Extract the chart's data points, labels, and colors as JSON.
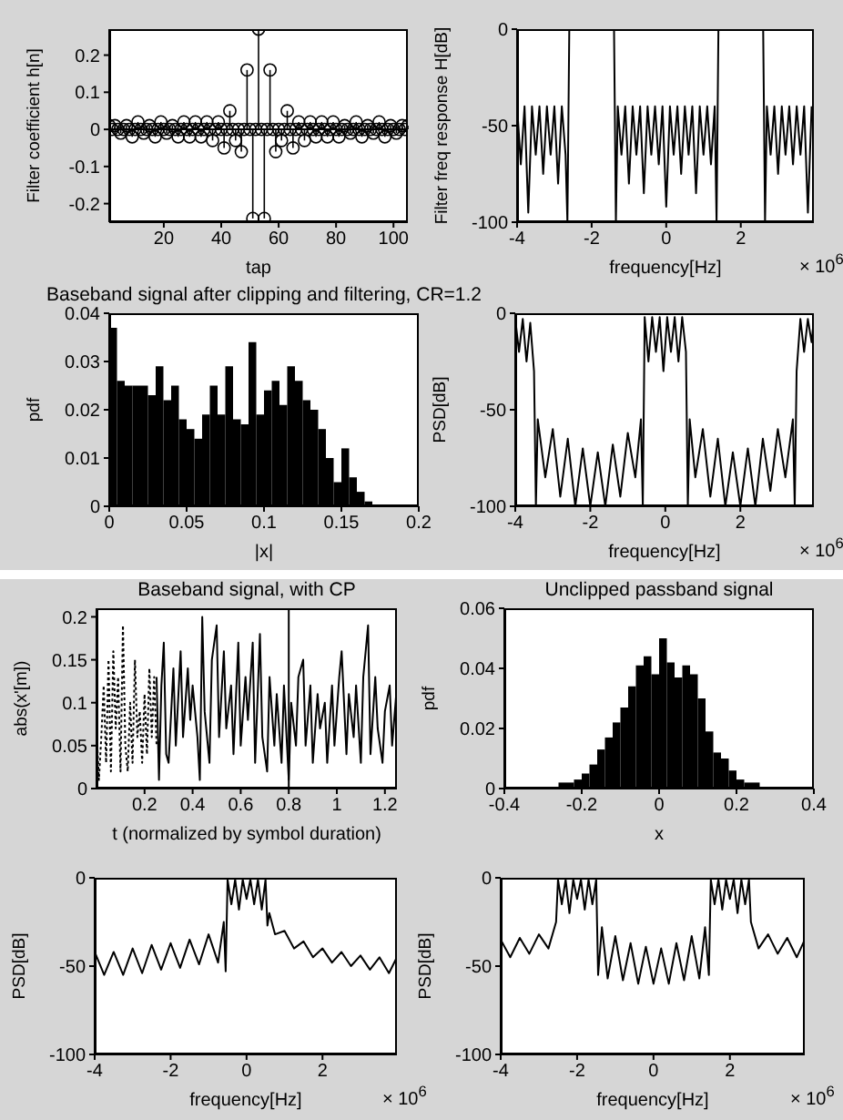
{
  "chart_data": [
    {
      "type": "lollipop",
      "xlabel": "tap",
      "ylabel": "Filter coefficient h[n]",
      "xlim": [
        1,
        105
      ],
      "ylim": [
        -0.25,
        0.27
      ],
      "xticks": [
        20,
        40,
        60,
        80,
        100
      ],
      "yticks": [
        -0.2,
        -0.1,
        0,
        0.1,
        0.2
      ],
      "marker": "circle",
      "color": "#000000",
      "x": [
        1,
        2,
        3,
        4,
        5,
        6,
        7,
        8,
        9,
        10,
        11,
        12,
        13,
        14,
        15,
        16,
        17,
        18,
        19,
        20,
        21,
        22,
        23,
        24,
        25,
        26,
        27,
        28,
        29,
        30,
        31,
        32,
        33,
        34,
        35,
        36,
        37,
        38,
        39,
        40,
        41,
        42,
        43,
        44,
        45,
        46,
        47,
        48,
        49,
        50,
        51,
        52,
        53,
        54,
        55,
        56,
        57,
        58,
        59,
        60,
        61,
        62,
        63,
        64,
        65,
        66,
        67,
        68,
        69,
        70,
        71,
        72,
        73,
        74,
        75,
        76,
        77,
        78,
        79,
        80,
        81,
        82,
        83,
        84,
        85,
        86,
        87,
        88,
        89,
        90,
        91,
        92,
        93,
        94,
        95,
        96,
        97,
        98,
        99,
        100,
        101,
        102,
        103,
        104,
        105
      ],
      "values": [
        0.01,
        0,
        0.01,
        0,
        -0.01,
        0,
        0.01,
        0,
        -0.02,
        0,
        0.02,
        0,
        -0.01,
        0,
        0.01,
        0,
        -0.02,
        0,
        0.02,
        0,
        -0.01,
        0,
        0.01,
        0,
        -0.02,
        0,
        0.02,
        0,
        -0.02,
        0,
        0.02,
        0,
        -0.02,
        0,
        0.02,
        0,
        -0.03,
        0,
        0.02,
        0,
        -0.05,
        0,
        0.05,
        0,
        -0.03,
        0,
        -0.06,
        0,
        0.16,
        0,
        -0.24,
        0,
        0.27,
        0,
        -0.24,
        0,
        0.16,
        0,
        -0.06,
        0,
        -0.03,
        0,
        0.05,
        0,
        -0.05,
        0,
        0.02,
        0,
        -0.03,
        0,
        0.02,
        0,
        -0.02,
        0,
        0.02,
        0,
        -0.02,
        0,
        0.02,
        0,
        -0.02,
        0,
        0.01,
        0,
        -0.01,
        0,
        0.02,
        0,
        -0.02,
        0,
        0.01,
        0,
        -0.01,
        0,
        0.02,
        0,
        -0.02,
        0,
        0.01,
        0,
        -0.01,
        0,
        0.01,
        0,
        0.01
      ]
    },
    {
      "type": "line",
      "xlabel": "frequency[Hz]",
      "ylabel": "Filter freq response H[dB]",
      "xlim": [
        -4,
        3.96
      ],
      "ylim": [
        -100,
        0
      ],
      "xticks": [
        -4,
        -2,
        0,
        2
      ],
      "yticks": [
        -100,
        -50,
        0
      ],
      "annotations": [
        "× 10$^{6}$"
      ],
      "series": [
        {
          "color": "#000000",
          "x": [
            -4,
            -3.9,
            -3.8,
            -3.7,
            -3.6,
            -3.5,
            -3.4,
            -3.3,
            -3.2,
            -3.1,
            -3,
            -2.9,
            -2.8,
            -2.7,
            -2.65,
            -2.6,
            -2,
            -1.4,
            -1.35,
            -1.3,
            -1.2,
            -1.1,
            -1,
            -0.9,
            -0.8,
            -0.7,
            -0.6,
            -0.5,
            -0.4,
            -0.3,
            -0.2,
            -0.1,
            0,
            0.1,
            0.2,
            0.3,
            0.4,
            0.5,
            0.6,
            0.7,
            0.8,
            0.9,
            1,
            1.1,
            1.2,
            1.3,
            1.35,
            1.4,
            2,
            2.6,
            2.65,
            2.7,
            2.8,
            2.9,
            3,
            3.1,
            3.2,
            3.3,
            3.4,
            3.5,
            3.6,
            3.7,
            3.8,
            3.9
          ],
          "values": [
            -40,
            -70,
            -40,
            -95,
            -40,
            -65,
            -40,
            -75,
            -40,
            -65,
            -40,
            -80,
            -40,
            -65,
            -100,
            0,
            0,
            0,
            -100,
            -40,
            -65,
            -40,
            -80,
            -40,
            -65,
            -40,
            -85,
            -40,
            -65,
            -40,
            -70,
            -40,
            -92,
            -40,
            -65,
            -40,
            -75,
            -40,
            -65,
            -40,
            -85,
            -40,
            -65,
            -40,
            -70,
            -40,
            -100,
            0,
            0,
            0,
            -100,
            -40,
            -65,
            -40,
            -75,
            -40,
            -65,
            -40,
            -70,
            -40,
            -65,
            -40,
            -95,
            -40
          ]
        }
      ]
    },
    {
      "type": "histogram",
      "title": "Baseband signal after clipping and filtering, CR=1.2",
      "xlabel": "|x|",
      "ylabel": "pdf",
      "xlim": [
        0,
        0.2
      ],
      "ylim": [
        0,
        0.04
      ],
      "xticks": [
        0,
        0.05,
        0.1,
        0.15,
        0.2
      ],
      "yticks": [
        0,
        0.01,
        0.02,
        0.03,
        0.04
      ],
      "color": "#000000",
      "bins": [
        0,
        0.005,
        0.01,
        0.015,
        0.02,
        0.025,
        0.03,
        0.035,
        0.04,
        0.045,
        0.05,
        0.055,
        0.06,
        0.065,
        0.07,
        0.075,
        0.08,
        0.085,
        0.09,
        0.095,
        0.1,
        0.105,
        0.11,
        0.115,
        0.12,
        0.125,
        0.13,
        0.135,
        0.14,
        0.145,
        0.15,
        0.155,
        0.16,
        0.165,
        0.17
      ],
      "values": [
        0.037,
        0.026,
        0.025,
        0.025,
        0.025,
        0.023,
        0.029,
        0.022,
        0.025,
        0.018,
        0.016,
        0.014,
        0.019,
        0.025,
        0.019,
        0.029,
        0.018,
        0.017,
        0.034,
        0.019,
        0.024,
        0.026,
        0.021,
        0.029,
        0.026,
        0.022,
        0.02,
        0.016,
        0.01,
        0.005,
        0.012,
        0.006,
        0.003,
        0.001
      ]
    },
    {
      "type": "line",
      "xlabel": "frequency[Hz]",
      "ylabel": "PSD[dB]",
      "xlim": [
        -4,
        3.96
      ],
      "ylim": [
        -100,
        0
      ],
      "xticks": [
        -4,
        -2,
        0,
        2
      ],
      "yticks": [
        -100,
        -50,
        0
      ],
      "annotations": [
        "× 10$^{6}$"
      ],
      "series": [
        {
          "color": "#000000",
          "x": [
            -4,
            -3.9,
            -3.8,
            -3.7,
            -3.6,
            -3.5,
            -3.45,
            -3.4,
            -3.2,
            -3,
            -2.8,
            -2.6,
            -2.4,
            -2.2,
            -2,
            -1.8,
            -1.6,
            -1.4,
            -1.2,
            -1,
            -0.8,
            -0.65,
            -0.6,
            -0.55,
            -0.45,
            -0.35,
            -0.25,
            -0.15,
            -0.05,
            0.05,
            0.15,
            0.25,
            0.35,
            0.45,
            0.55,
            0.6,
            0.65,
            0.8,
            1,
            1.2,
            1.4,
            1.6,
            1.8,
            2,
            2.2,
            2.4,
            2.6,
            2.8,
            3,
            3.2,
            3.4,
            3.45,
            3.5,
            3.6,
            3.7,
            3.8,
            3.9,
            3.96
          ],
          "values": [
            -3,
            -20,
            -3,
            -25,
            -5,
            -30,
            -100,
            -55,
            -85,
            -60,
            -95,
            -65,
            -100,
            -70,
            -100,
            -72,
            -100,
            -68,
            -95,
            -62,
            -85,
            -55,
            -100,
            -2,
            -25,
            -2,
            -20,
            -2,
            -30,
            -2,
            -20,
            -2,
            -25,
            -2,
            -20,
            -100,
            -55,
            -85,
            -60,
            -95,
            -65,
            -100,
            -72,
            -100,
            -70,
            -100,
            -65,
            -92,
            -60,
            -85,
            -55,
            -100,
            -30,
            -3,
            -20,
            -3,
            -15,
            -3
          ]
        }
      ]
    },
    {
      "type": "line",
      "title": "Baseband signal, with CP",
      "xlabel": "t (normalized by symbol duration)",
      "ylabel": "abs(x'[m])",
      "xlim": [
        0,
        1.25
      ],
      "ylim": [
        0,
        0.21
      ],
      "xticks": [
        0.2,
        0.4,
        0.6,
        0.8,
        1,
        1.2
      ],
      "yticks": [
        0,
        0.05,
        0.1,
        0.15,
        0.2
      ],
      "ref_lines": [
        {
          "axis": "x",
          "value": 0.8,
          "color": "#000000"
        }
      ],
      "series": [
        {
          "color": "#000000",
          "x": [
            0.25,
            0.26,
            0.27,
            0.28,
            0.29,
            0.3,
            0.32,
            0.33,
            0.35,
            0.36,
            0.38,
            0.39,
            0.4,
            0.42,
            0.43,
            0.44,
            0.45,
            0.47,
            0.48,
            0.5,
            0.51,
            0.53,
            0.54,
            0.56,
            0.57,
            0.59,
            0.6,
            0.62,
            0.63,
            0.65,
            0.66,
            0.68,
            0.69,
            0.71,
            0.72,
            0.74,
            0.75,
            0.77,
            0.78,
            0.8,
            0.81,
            0.83,
            0.84,
            0.86,
            0.87,
            0.89,
            0.9,
            0.92,
            0.93,
            0.95,
            0.96,
            0.98,
            0.99,
            1.01,
            1.02,
            1.04,
            1.05,
            1.07,
            1.08,
            1.1,
            1.11,
            1.13,
            1.14,
            1.16,
            1.17,
            1.19,
            1.2,
            1.22,
            1.23,
            1.25
          ],
          "values": [
            0.13,
            0.01,
            0.12,
            0.17,
            0.04,
            0.03,
            0.14,
            0.05,
            0.16,
            0.06,
            0.14,
            0.08,
            0.12,
            0.06,
            0.01,
            0.2,
            0.09,
            0.03,
            0.15,
            0.19,
            0.06,
            0.16,
            0.07,
            0.12,
            0.04,
            0.17,
            0.05,
            0.13,
            0.08,
            0.17,
            0.03,
            0.18,
            0.06,
            0.02,
            0.13,
            0.05,
            0.11,
            0.03,
            0.12,
            0.01,
            0.1,
            0.05,
            0.13,
            0.15,
            0.05,
            0.12,
            0.03,
            0.11,
            0.07,
            0.1,
            0.03,
            0.12,
            0.05,
            0.13,
            0.16,
            0.04,
            0.11,
            0.06,
            0.12,
            0.03,
            0.13,
            0.19,
            0.04,
            0.13,
            0.07,
            0.03,
            0.09,
            0.12,
            0.05,
            0.12
          ]
        },
        {
          "color": "#000000",
          "line_style": "dotted",
          "x": [
            0,
            0.01,
            0.02,
            0.03,
            0.04,
            0.05,
            0.06,
            0.07,
            0.08,
            0.09,
            0.1,
            0.11,
            0.12,
            0.13,
            0.14,
            0.15,
            0.16,
            0.17,
            0.18,
            0.19,
            0.2,
            0.21,
            0.22,
            0.23,
            0.24,
            0.25
          ],
          "values": [
            0.07,
            0.01,
            0.06,
            0.12,
            0.03,
            0.15,
            0.02,
            0.16,
            0.07,
            0.13,
            0.02,
            0.19,
            0.05,
            0.02,
            0.1,
            0.03,
            0.15,
            0.06,
            0.09,
            0.03,
            0.11,
            0.04,
            0.14,
            0.06,
            0.13,
            0.05
          ]
        }
      ]
    },
    {
      "type": "histogram",
      "title": "Unclipped passband signal",
      "xlabel": "x",
      "ylabel": "pdf",
      "xlim": [
        -0.4,
        0.4
      ],
      "ylim": [
        0,
        0.06
      ],
      "xticks": [
        -0.4,
        -0.2,
        0,
        0.2,
        0.4
      ],
      "yticks": [
        0,
        0.02,
        0.04,
        0.06
      ],
      "color": "#000000",
      "bins": [
        -0.26,
        -0.24,
        -0.22,
        -0.2,
        -0.18,
        -0.16,
        -0.14,
        -0.12,
        -0.1,
        -0.08,
        -0.06,
        -0.04,
        -0.02,
        0,
        0.02,
        0.04,
        0.06,
        0.08,
        0.1,
        0.12,
        0.14,
        0.16,
        0.18,
        0.2,
        0.22,
        0.24,
        0.26
      ],
      "values": [
        0.002,
        0.002,
        0.003,
        0.005,
        0.008,
        0.013,
        0.017,
        0.022,
        0.027,
        0.034,
        0.041,
        0.044,
        0.038,
        0.05,
        0.042,
        0.037,
        0.041,
        0.038,
        0.03,
        0.019,
        0.012,
        0.01,
        0.006,
        0.003,
        0.002,
        0.002
      ]
    },
    {
      "type": "line",
      "xlabel": "frequency[Hz]",
      "ylabel": "PSD[dB]",
      "xlim": [
        -4,
        3.96
      ],
      "ylim": [
        -100,
        0
      ],
      "xticks": [
        -4,
        -2,
        0,
        2
      ],
      "yticks": [
        -100,
        -50,
        0
      ],
      "annotations": [
        "× 10$^{6}$"
      ],
      "series": [
        {
          "color": "#000000",
          "x": [
            -4,
            -3.75,
            -3.5,
            -3.25,
            -3,
            -2.75,
            -2.5,
            -2.25,
            -2,
            -1.75,
            -1.5,
            -1.25,
            -1,
            -0.75,
            -0.6,
            -0.55,
            -0.5,
            -0.4,
            -0.3,
            -0.2,
            -0.1,
            0,
            0.1,
            0.2,
            0.3,
            0.4,
            0.5,
            0.55,
            0.6,
            0.75,
            1,
            1.25,
            1.5,
            1.75,
            2,
            2.25,
            2.5,
            2.75,
            3,
            3.25,
            3.5,
            3.75,
            3.96
          ],
          "values": [
            -42,
            -55,
            -42,
            -55,
            -40,
            -54,
            -38,
            -52,
            -37,
            -51,
            -35,
            -49,
            -32,
            -48,
            -25,
            -53,
            -1,
            -15,
            -1,
            -18,
            -1,
            -12,
            -1,
            -15,
            -1,
            -18,
            -1,
            -27,
            -20,
            -32,
            -30,
            -40,
            -36,
            -45,
            -40,
            -48,
            -42,
            -50,
            -44,
            -52,
            -45,
            -54,
            -45
          ]
        }
      ]
    },
    {
      "type": "line",
      "xlabel": "frequency[Hz]",
      "ylabel": "PSD[dB]",
      "xlim": [
        -4,
        3.96
      ],
      "ylim": [
        -100,
        0
      ],
      "xticks": [
        -4,
        -2,
        0,
        2
      ],
      "yticks": [
        -100,
        -50,
        0
      ],
      "annotations": [
        "× 10$^{6}$"
      ],
      "series": [
        {
          "color": "#000000",
          "x": [
            -4,
            -3.75,
            -3.5,
            -3.25,
            -3,
            -2.75,
            -2.55,
            -2.5,
            -2.4,
            -2.3,
            -2.2,
            -2.1,
            -2,
            -1.9,
            -1.8,
            -1.7,
            -1.6,
            -1.5,
            -1.45,
            -1.35,
            -1.2,
            -1,
            -0.8,
            -0.6,
            -0.4,
            -0.2,
            0,
            0.2,
            0.4,
            0.6,
            0.8,
            1,
            1.2,
            1.35,
            1.45,
            1.5,
            1.6,
            1.7,
            1.8,
            1.9,
            2,
            2.1,
            2.2,
            2.3,
            2.4,
            2.5,
            2.55,
            2.75,
            3,
            3.25,
            3.5,
            3.75,
            3.96
          ],
          "values": [
            -35,
            -45,
            -34,
            -43,
            -32,
            -40,
            -25,
            -1,
            -15,
            -1,
            -20,
            -1,
            -12,
            -1,
            -18,
            -1,
            -15,
            -1,
            -55,
            -28,
            -57,
            -33,
            -58,
            -37,
            -60,
            -39,
            -60,
            -40,
            -60,
            -37,
            -58,
            -33,
            -57,
            -28,
            -55,
            -1,
            -15,
            -1,
            -18,
            -1,
            -12,
            -1,
            -20,
            -1,
            -15,
            -1,
            -25,
            -40,
            -32,
            -43,
            -34,
            -45,
            -35
          ]
        }
      ]
    }
  ]
}
